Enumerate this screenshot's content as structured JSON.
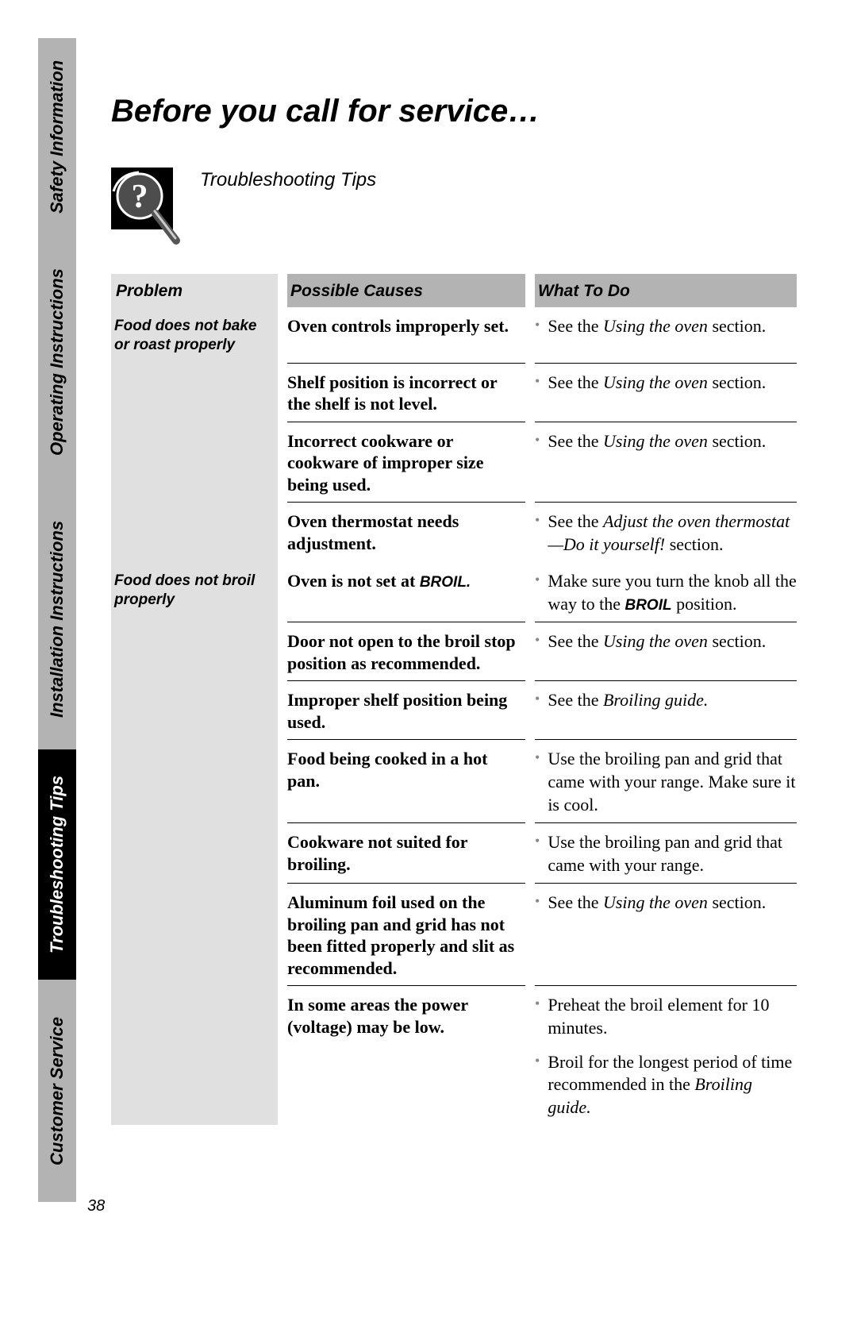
{
  "page_number": "38",
  "sidebar": {
    "tabs": [
      {
        "label": "Safety Information",
        "style": "light"
      },
      {
        "label": "Operating Instructions",
        "style": "light"
      },
      {
        "label": "Installation Instructions",
        "style": "light"
      },
      {
        "label": "Troubleshooting Tips",
        "style": "dark"
      },
      {
        "label": "Customer Service",
        "style": "light"
      }
    ],
    "tab_heights": [
      248,
      320,
      328,
      290,
      280
    ],
    "colors": {
      "light_bg": "#b3b3b3",
      "dark_bg": "#000000",
      "light_text": "#000000",
      "dark_text": "#ffffff"
    }
  },
  "title": "Before you call for service…",
  "subtitle": "Troubleshooting Tips",
  "icon": {
    "bg_color": "#000000",
    "glass_color": "#4d4d4d",
    "question_color": "#ffffff",
    "highlight_color": "#ffffff"
  },
  "headers": {
    "problem": "Problem",
    "cause": "Possible Causes",
    "action": "What To Do"
  },
  "problems": [
    {
      "problem": "Food does not bake or roast properly",
      "rows": [
        {
          "cause": "Oven controls improperly set.",
          "actions": [
            {
              "segments": [
                {
                  "text": "See the "
                },
                {
                  "text": "Using the oven",
                  "style": "italic"
                },
                {
                  "text": " section."
                }
              ]
            }
          ]
        },
        {
          "cause": "Shelf position is incorrect or the shelf is not level.",
          "actions": [
            {
              "segments": [
                {
                  "text": "See the "
                },
                {
                  "text": "Using the oven",
                  "style": "italic"
                },
                {
                  "text": " section."
                }
              ]
            }
          ]
        },
        {
          "cause": "Incorrect cookware or cookware of improper size being used.",
          "actions": [
            {
              "segments": [
                {
                  "text": "See the "
                },
                {
                  "text": "Using the oven",
                  "style": "italic"
                },
                {
                  "text": " section."
                }
              ]
            }
          ]
        },
        {
          "cause": "Oven thermostat needs adjustment.",
          "actions": [
            {
              "segments": [
                {
                  "text": "See the "
                },
                {
                  "text": "Adjust the oven thermostat—Do it yourself!",
                  "style": "italic"
                },
                {
                  "text": " section."
                }
              ]
            }
          ]
        }
      ]
    },
    {
      "problem": "Food does not broil properly",
      "rows": [
        {
          "cause_segments": [
            {
              "text": "Oven is not set at "
            },
            {
              "text": "BROIL.",
              "style": "bold-italic",
              "font": "arial"
            }
          ],
          "actions": [
            {
              "segments": [
                {
                  "text": "Make sure you turn the knob all the way to the "
                },
                {
                  "text": "BROIL",
                  "style": "bold-italic",
                  "font": "arial"
                },
                {
                  "text": " position."
                }
              ]
            }
          ]
        },
        {
          "cause": "Door not open to the broil stop position as recommended.",
          "actions": [
            {
              "segments": [
                {
                  "text": "See the "
                },
                {
                  "text": "Using the oven",
                  "style": "italic"
                },
                {
                  "text": " section."
                }
              ]
            }
          ]
        },
        {
          "cause": "Improper shelf position being used.",
          "actions": [
            {
              "segments": [
                {
                  "text": "See the "
                },
                {
                  "text": "Broiling guide.",
                  "style": "italic"
                }
              ]
            }
          ]
        },
        {
          "cause": "Food being cooked in a hot pan.",
          "actions": [
            {
              "segments": [
                {
                  "text": "Use the broiling pan and grid that came with your range. Make sure it is cool."
                }
              ]
            }
          ]
        },
        {
          "cause": "Cookware not suited for broiling.",
          "actions": [
            {
              "segments": [
                {
                  "text": "Use the broiling pan and grid that came with your range."
                }
              ]
            }
          ]
        },
        {
          "cause": "Aluminum foil used on the broiling pan and grid has not been fitted properly and slit as recommended.",
          "actions": [
            {
              "segments": [
                {
                  "text": "See the "
                },
                {
                  "text": "Using the oven",
                  "style": "italic"
                },
                {
                  "text": " section."
                }
              ]
            }
          ]
        },
        {
          "cause": "In some areas the power (voltage) may be low.",
          "actions": [
            {
              "segments": [
                {
                  "text": "Preheat the broil element for 10 minutes."
                }
              ]
            },
            {
              "segments": [
                {
                  "text": "Broil for the longest period of time recommended in the "
                },
                {
                  "text": "Broiling guide.",
                  "style": "italic"
                }
              ]
            }
          ]
        }
      ]
    }
  ],
  "colors": {
    "header_bg": "#b3b3b3",
    "problem_bg": "#e0e0e0",
    "bullet": "#888888",
    "text": "#000000",
    "divider": "#000000"
  },
  "typography": {
    "title_fontsize": 40,
    "subtitle_fontsize": 24,
    "header_fontsize": 21,
    "problem_fontsize": 19,
    "body_fontsize": 22,
    "tab_fontsize": 22
  }
}
